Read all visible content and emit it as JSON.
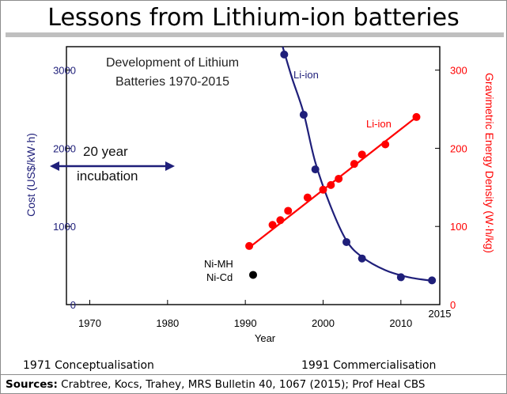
{
  "slide": {
    "title": "Lessons from Lithium-ion batteries",
    "footer_left": "1971 Conceptualisation",
    "footer_right": "1991 Commercialisation",
    "sources_label": "Sources:",
    "sources_text": " Crabtree, Kocs, Trahey, MRS Bulletin 40, 1067 (2015); Prof Heal CBS"
  },
  "chart_data": {
    "type": "scatter",
    "title": "Development of Lithium Batteries 1970-2015",
    "title_lines": [
      "Development of Lithium",
      "Batteries 1970-2015"
    ],
    "xlabel": "Year",
    "xlim": [
      1967,
      2015
    ],
    "xticks": [
      1970,
      1980,
      1990,
      2000,
      2010,
      2015
    ],
    "y_left": {
      "label": "Cost (US$/kW·h)",
      "lim": [
        0,
        3300
      ],
      "ticks": [
        0,
        1000,
        2000,
        3000
      ],
      "color": "#1f1f7a"
    },
    "y_right": {
      "label": "Gravimetric Energy Density (W·h/kg)",
      "lim": [
        0,
        330
      ],
      "ticks": [
        0,
        100,
        200,
        300
      ],
      "color": "#ff0000"
    },
    "series": [
      {
        "name": "Li-ion",
        "axis": "left",
        "color": "#1f1f7a",
        "x": [
          1995,
          1997.5,
          1999,
          2003,
          2005,
          2010,
          2014
        ],
        "y": [
          3200,
          2430,
          1730,
          800,
          590,
          350,
          310
        ],
        "fit": [
          [
            1994.8,
            3300
          ],
          [
            1996,
            2900
          ],
          [
            1997.5,
            2450
          ],
          [
            1999,
            1820
          ],
          [
            2001,
            1250
          ],
          [
            2003,
            820
          ],
          [
            2005,
            610
          ],
          [
            2008,
            440
          ],
          [
            2011,
            350
          ],
          [
            2014,
            305
          ]
        ]
      },
      {
        "name": "Li-ion",
        "axis": "right",
        "color": "#ff0000",
        "x": [
          1990.5,
          1993.5,
          1994.5,
          1995.5,
          1998,
          2000,
          2001,
          2002,
          2004,
          2005,
          2008,
          2012
        ],
        "y": [
          75,
          102,
          108,
          120,
          137,
          147,
          153,
          161,
          180,
          192,
          205,
          240
        ],
        "fit": [
          [
            1990.5,
            73
          ],
          [
            2012,
            240
          ]
        ]
      },
      {
        "name": "Ni-MH Ni-Cd",
        "axis": "left",
        "color": "#000000",
        "x": [
          1991
        ],
        "y": [
          380
        ]
      }
    ],
    "annotations": {
      "li_ion_blue": "Li-ion",
      "li_ion_red": "Li-ion",
      "nimh": "Ni-MH",
      "nicd": "Ni-Cd",
      "incubation_line1": "20 year",
      "incubation_line2": "incubation",
      "incubation_range": [
        1970,
        1980
      ]
    },
    "grid": false,
    "legend": "none"
  }
}
